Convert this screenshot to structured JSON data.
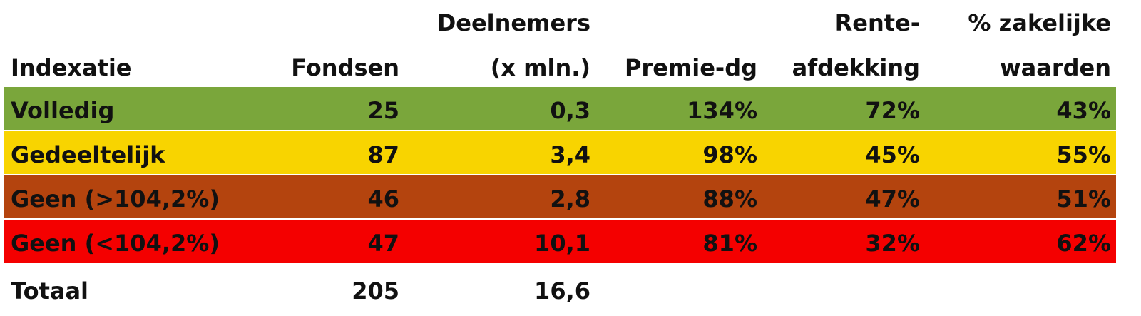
{
  "table": {
    "headers": [
      [
        "Indexatie"
      ],
      [
        "Fondsen"
      ],
      [
        "Deelnemers",
        "(x mln.)"
      ],
      [
        "Premie-dg"
      ],
      [
        "Rente-",
        "afdekking"
      ],
      [
        "% zakelijke",
        "waarden"
      ]
    ],
    "rows": [
      {
        "color": "#7aa63b",
        "cells": [
          "Volledig",
          "25",
          "0,3",
          "134%",
          "72%",
          "43%"
        ]
      },
      {
        "color": "#f8d400",
        "cells": [
          "Gedeeltelijk",
          "87",
          "3,4",
          "98%",
          "45%",
          "55%"
        ]
      },
      {
        "color": "#b4440e",
        "cells": [
          "Geen (>104,2%)",
          "46",
          "2,8",
          "88%",
          "47%",
          "51%"
        ]
      },
      {
        "color": "#f40000",
        "cells": [
          "Geen (<104,2%)",
          "47",
          "10,1",
          "81%",
          "32%",
          "62%"
        ]
      }
    ],
    "total": [
      "Totaal",
      "205",
      "16,6"
    ]
  }
}
